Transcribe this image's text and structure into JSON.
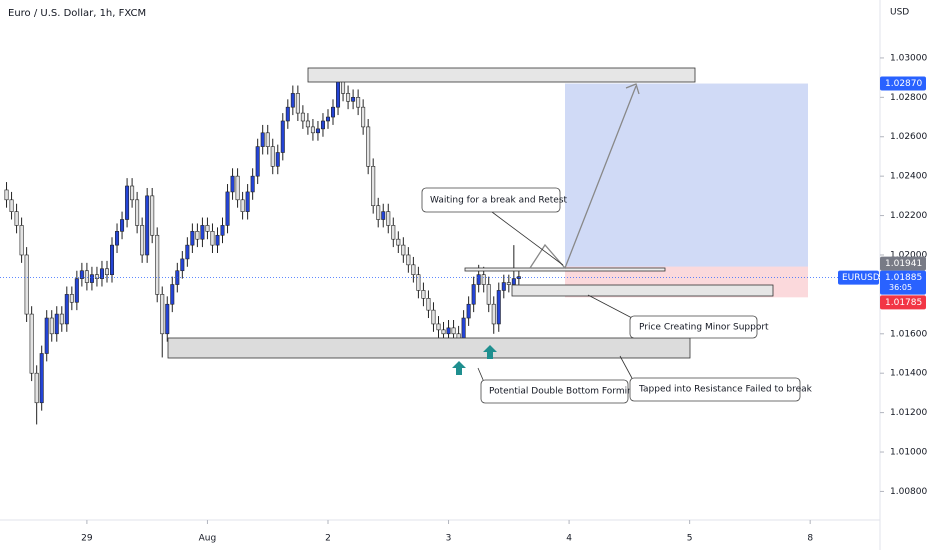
{
  "chart_data": {
    "type": "candlestick",
    "title": "Euro / U.S. Dollar, 1h, FXCM",
    "currency": "USD",
    "symbol": "EURUSD",
    "countdown": "36:05",
    "up_color": "#2444d6",
    "down_color": "#e3e3e3",
    "open": [
      1.0233,
      1.0228,
      1.0222,
      1.0215,
      1.02,
      1.017,
      1.014,
      1.0125,
      1.015,
      1.0168,
      1.016,
      1.017,
      1.0165,
      1.018,
      1.0176,
      1.0188,
      1.0192,
      1.0186,
      1.019,
      1.0188,
      1.0193,
      1.019,
      1.0205,
      1.0212,
      1.0218,
      1.0235,
      1.0228,
      1.0215,
      1.02,
      1.023,
      1.021,
      1.018,
      1.016,
      1.0175,
      1.0185,
      1.0192,
      1.0198,
      1.0205,
      1.0212,
      1.0208,
      1.0215,
      1.0212,
      1.0205,
      1.021,
      1.0215,
      1.0232,
      1.024,
      1.0228,
      1.0222,
      1.0232,
      1.024,
      1.0255,
      1.0262,
      1.0255,
      1.0245,
      1.0252,
      1.0268,
      1.0275,
      1.0282,
      1.0272,
      1.0268,
      1.0265,
      1.0262,
      1.0264,
      1.0268,
      1.027,
      1.0275,
      1.029,
      1.0282,
      1.0278,
      1.028,
      1.0275,
      1.0265,
      1.0245,
      1.0225,
      1.0218,
      1.0222,
      1.0215,
      1.0208,
      1.0205,
      1.02,
      1.0195,
      1.019,
      1.0182,
      1.0178,
      1.0172,
      1.0165,
      1.0162,
      1.016,
      1.0163,
      1.016,
      1.0156,
      1.0168,
      1.0175,
      1.0185,
      1.019,
      1.0185,
      1.0175,
      1.0165,
      1.0182,
      1.0186,
      1.0185,
      1.0188
    ],
    "high": [
      1.0237,
      1.0232,
      1.0226,
      1.0219,
      1.0204,
      1.0174,
      1.0144,
      1.0154,
      1.0172,
      1.0172,
      1.0174,
      1.0174,
      1.0184,
      1.0184,
      1.0192,
      1.0196,
      1.0196,
      1.0194,
      1.0194,
      1.0197,
      1.0197,
      1.0209,
      1.0216,
      1.0222,
      1.0239,
      1.0239,
      1.0232,
      1.0219,
      1.0234,
      1.0234,
      1.0214,
      1.0184,
      1.0179,
      1.0189,
      1.0196,
      1.0202,
      1.0209,
      1.0216,
      1.0216,
      1.0219,
      1.0219,
      1.0216,
      1.0214,
      1.0219,
      1.0236,
      1.0244,
      1.0244,
      1.0232,
      1.0236,
      1.0244,
      1.0259,
      1.0266,
      1.0266,
      1.0259,
      1.0256,
      1.0272,
      1.0279,
      1.0286,
      1.0286,
      1.0276,
      1.0272,
      1.0269,
      1.0268,
      1.0272,
      1.0274,
      1.0279,
      1.0294,
      1.0294,
      1.0286,
      1.0284,
      1.0284,
      1.0279,
      1.0269,
      1.0249,
      1.0229,
      1.0226,
      1.0226,
      1.0219,
      1.0212,
      1.0209,
      1.0204,
      1.0199,
      1.0194,
      1.0186,
      1.0182,
      1.0176,
      1.0169,
      1.0166,
      1.0167,
      1.0167,
      1.0164,
      1.0172,
      1.0179,
      1.0189,
      1.0195,
      1.0194,
      1.0189,
      1.0179,
      1.0186,
      1.019,
      1.019,
      1.0205,
      1.0193
    ],
    "low": [
      1.0224,
      1.0218,
      1.0211,
      1.0196,
      1.0166,
      1.0136,
      1.0114,
      1.0121,
      1.0146,
      1.0156,
      1.0156,
      1.0161,
      1.0161,
      1.0172,
      1.0172,
      1.0184,
      1.0182,
      1.0182,
      1.0184,
      1.0184,
      1.0186,
      1.0186,
      1.0201,
      1.0208,
      1.0214,
      1.0224,
      1.0211,
      1.0196,
      1.0196,
      1.0206,
      1.0176,
      1.0148,
      1.0156,
      1.0171,
      1.0181,
      1.0188,
      1.0194,
      1.0201,
      1.0204,
      1.0204,
      1.0208,
      1.0201,
      1.0201,
      1.0206,
      1.0211,
      1.0228,
      1.0224,
      1.0218,
      1.0218,
      1.0228,
      1.0236,
      1.0251,
      1.0251,
      1.0241,
      1.0241,
      1.0248,
      1.0264,
      1.0271,
      1.0268,
      1.0264,
      1.0261,
      1.0258,
      1.0258,
      1.026,
      1.0264,
      1.0266,
      1.0271,
      1.0278,
      1.0274,
      1.0274,
      1.0271,
      1.0261,
      1.0241,
      1.0221,
      1.0214,
      1.0214,
      1.0211,
      1.0204,
      1.0201,
      1.0196,
      1.0191,
      1.0186,
      1.0178,
      1.0174,
      1.0168,
      1.0161,
      1.0158,
      1.0156,
      1.0156,
      1.0156,
      1.0152,
      1.0152,
      1.0164,
      1.0171,
      1.0181,
      1.0181,
      1.0171,
      1.016,
      1.0161,
      1.0178,
      1.0181,
      1.0181,
      1.0184
    ],
    "close": [
      1.0228,
      1.0222,
      1.0215,
      1.02,
      1.017,
      1.014,
      1.0125,
      1.015,
      1.0168,
      1.016,
      1.017,
      1.0165,
      1.018,
      1.0176,
      1.0188,
      1.0192,
      1.0186,
      1.019,
      1.0188,
      1.0193,
      1.019,
      1.0205,
      1.0212,
      1.0218,
      1.0235,
      1.0228,
      1.0215,
      1.02,
      1.023,
      1.021,
      1.018,
      1.016,
      1.0175,
      1.0185,
      1.0192,
      1.0198,
      1.0205,
      1.0212,
      1.0208,
      1.0215,
      1.0212,
      1.0205,
      1.021,
      1.0215,
      1.0232,
      1.024,
      1.0228,
      1.0222,
      1.0232,
      1.024,
      1.0255,
      1.0262,
      1.0255,
      1.0245,
      1.0252,
      1.0268,
      1.0275,
      1.0282,
      1.0272,
      1.0268,
      1.0265,
      1.0262,
      1.0264,
      1.0268,
      1.027,
      1.0275,
      1.029,
      1.0282,
      1.0278,
      1.028,
      1.0275,
      1.0265,
      1.0245,
      1.0225,
      1.0218,
      1.0222,
      1.0215,
      1.0208,
      1.0205,
      1.02,
      1.0195,
      1.019,
      1.0182,
      1.0178,
      1.0172,
      1.0165,
      1.0162,
      1.016,
      1.0163,
      1.016,
      1.0156,
      1.0168,
      1.0175,
      1.0185,
      1.019,
      1.0185,
      1.0175,
      1.0165,
      1.0182,
      1.0186,
      1.0185,
      1.0188,
      1.0189
    ],
    "ylim": [
      1.00655,
      1.03294
    ],
    "yticks": [
      {
        "value": 1.03,
        "label": "1.03000"
      },
      {
        "value": 1.028,
        "label": "1.02800"
      },
      {
        "value": 1.026,
        "label": "1.02600"
      },
      {
        "value": 1.024,
        "label": "1.02400"
      },
      {
        "value": 1.022,
        "label": "1.02200"
      },
      {
        "value": 1.02,
        "label": "1.02000"
      },
      {
        "value": 1.016,
        "label": "1.01600"
      },
      {
        "value": 1.014,
        "label": "1.01400"
      },
      {
        "value": 1.012,
        "label": "1.01200"
      },
      {
        "value": 1.01,
        "label": "1.01000"
      },
      {
        "value": 1.008,
        "label": "1.00800"
      }
    ],
    "xlim": [
      -1.3,
      173.9
    ],
    "xticks": [
      {
        "value": 16,
        "label": "29"
      },
      {
        "value": 40,
        "label": "Aug"
      },
      {
        "value": 64,
        "label": "2"
      },
      {
        "value": 88,
        "label": "3"
      },
      {
        "value": 112,
        "label": "4"
      },
      {
        "value": 136,
        "label": "5"
      },
      {
        "value": 160,
        "label": "8"
      }
    ],
    "last_price": {
      "value": 1.01885,
      "label": "1.01885"
    },
    "target": {
      "value": 1.0287,
      "label": "1.02870"
    },
    "entry": {
      "value": 1.01941,
      "label": "1.01941"
    },
    "stop": {
      "value": 1.01785,
      "label": "1.01785"
    },
    "annotations": [
      "Waiting for a break and Retest",
      "Price Creating Minor Support",
      "Potential Double Bottom Forming",
      "Tapped into Resistance Failed to break"
    ]
  }
}
